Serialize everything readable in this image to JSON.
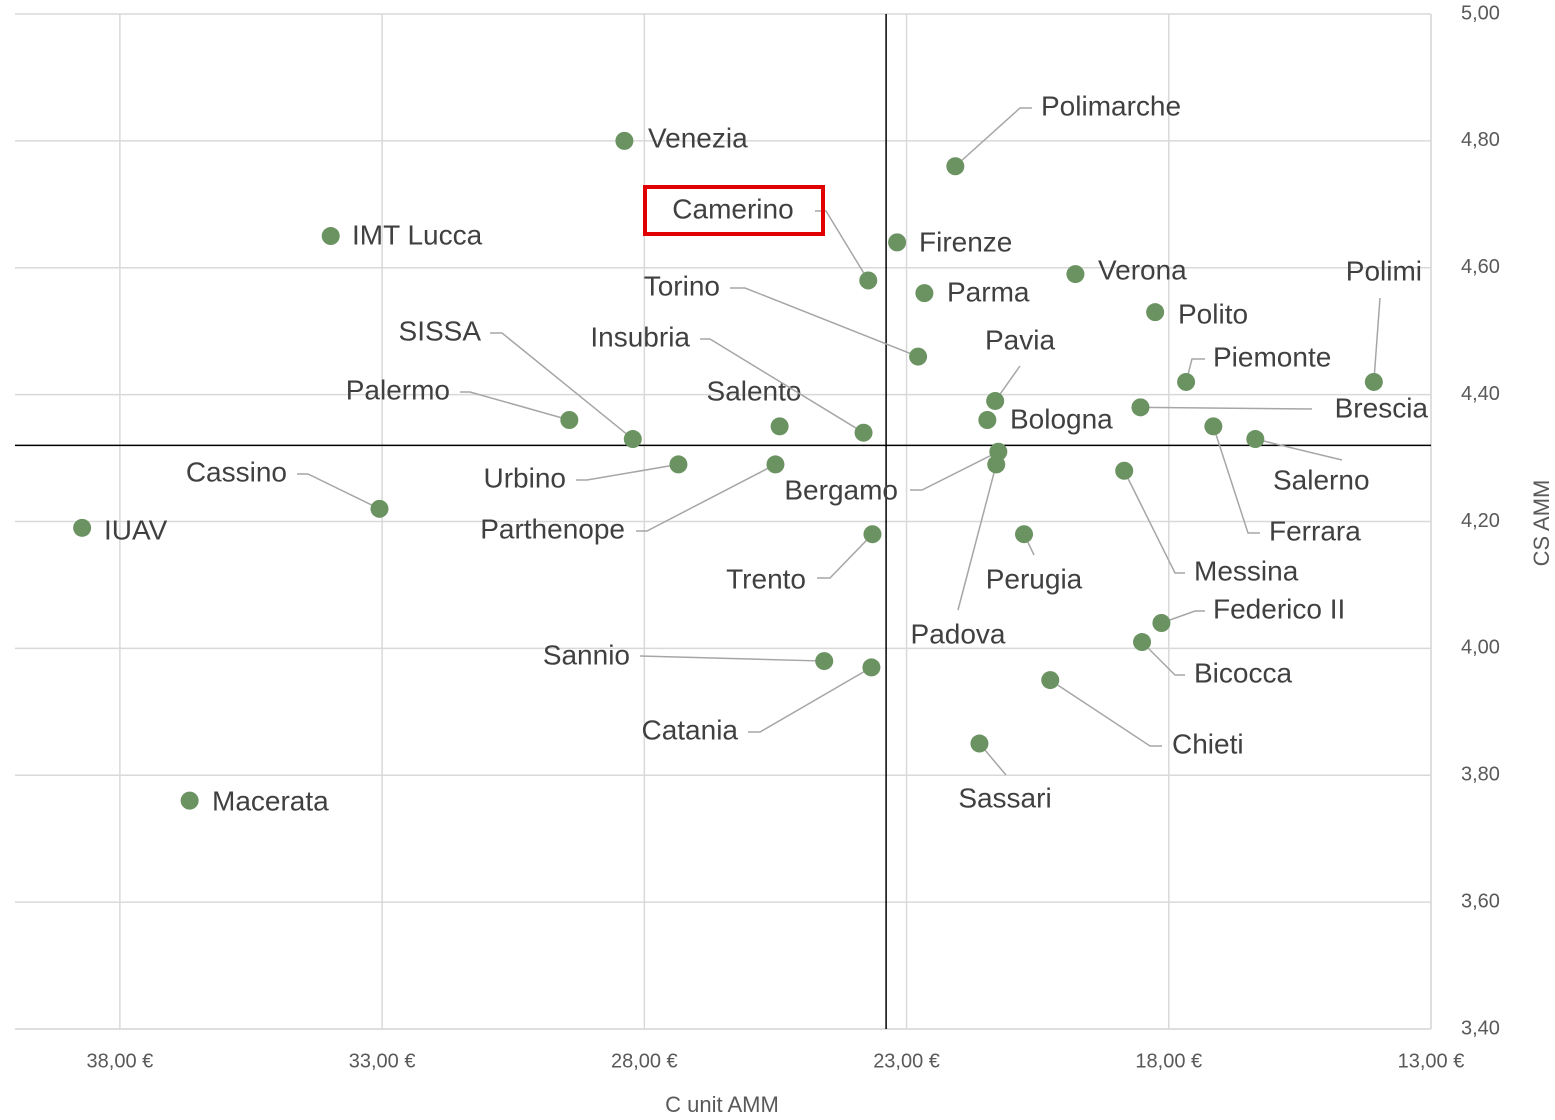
{
  "chart_data": {
    "type": "scatter",
    "x_label": "C unit AMM",
    "y_label": "CS AMM",
    "xlim": [
      40,
      13
    ],
    "ylim": [
      3.4,
      5.0
    ],
    "xticks": [
      {
        "value": 38,
        "label": "38,00 €"
      },
      {
        "value": 33,
        "label": "33,00 €"
      },
      {
        "value": 28,
        "label": "28,00 €"
      },
      {
        "value": 23,
        "label": "23,00 €"
      },
      {
        "value": 18,
        "label": "18,00 €"
      },
      {
        "value": 13,
        "label": "13,00 €"
      }
    ],
    "yticks": [
      {
        "value": 3.4,
        "label": "3,40"
      },
      {
        "value": 3.6,
        "label": "3,60"
      },
      {
        "value": 3.8,
        "label": "3,80"
      },
      {
        "value": 4.0,
        "label": "4,00"
      },
      {
        "value": 4.2,
        "label": "4,20"
      },
      {
        "value": 4.4,
        "label": "4,40"
      },
      {
        "value": 4.6,
        "label": "4,60"
      },
      {
        "value": 4.8,
        "label": "4,80"
      },
      {
        "value": 5.0,
        "label": "5,00"
      }
    ],
    "grid": true,
    "x_reference": 23.39,
    "y_reference": 4.32,
    "highlight": "Camerino",
    "series": [
      {
        "color": "#6b9362",
        "labels": [
          "Venezia",
          "Polimarche",
          "Camerino",
          "IMT Lucca",
          "Firenze",
          "Verona",
          "Parma",
          "Polito",
          "Polimi",
          "Torino",
          "Piemonte",
          "Pavia",
          "Bologna",
          "Brescia",
          "Palermo",
          "SISSA",
          "Salento",
          "Insubria",
          "Ferrara",
          "Salerno",
          "Urbino",
          "Parthenope",
          "Bergamo",
          "Padova",
          "Messina",
          "Cassino",
          "IUAV",
          "Trento",
          "Perugia",
          "Federico II",
          "Bicocca",
          "Sannio",
          "Catania",
          "Chieti",
          "Sassari",
          "Macerata"
        ],
        "x": [
          28.38,
          22.07,
          23.73,
          33.98,
          23.18,
          19.78,
          22.66,
          18.26,
          14.09,
          22.78,
          17.67,
          21.31,
          21.46,
          18.54,
          29.43,
          28.22,
          25.42,
          23.82,
          17.15,
          16.35,
          27.35,
          25.5,
          21.25,
          21.29,
          18.85,
          33.05,
          38.72,
          23.65,
          20.76,
          18.14,
          18.51,
          24.57,
          23.67,
          20.26,
          21.61,
          36.67
        ],
        "values": [
          4.8,
          4.76,
          4.58,
          4.65,
          4.64,
          4.59,
          4.56,
          4.53,
          4.42,
          4.46,
          4.42,
          4.39,
          4.36,
          4.38,
          4.36,
          4.33,
          4.35,
          4.34,
          4.35,
          4.33,
          4.29,
          4.29,
          4.31,
          4.29,
          4.28,
          4.22,
          4.19,
          4.18,
          4.18,
          4.04,
          4.01,
          3.98,
          3.97,
          3.95,
          3.85,
          3.76
        ]
      }
    ]
  }
}
